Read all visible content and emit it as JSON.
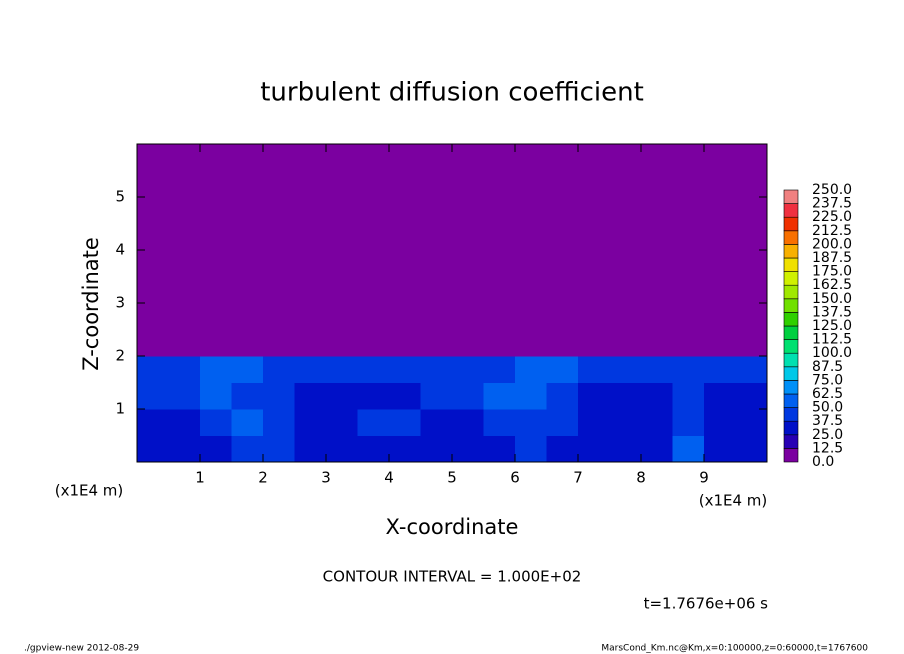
{
  "chart_data": {
    "type": "heatmap",
    "title": "turbulent diffusion coefficient",
    "x_label": "X-coordinate",
    "y_label": "Z-coordinate",
    "x_unit": "(x1E4 m)",
    "y_unit": "(x1E4 m)",
    "contour_interval": "CONTOUR INTERVAL = 1.000E+02",
    "time_label": "t=1.7676e+06 s",
    "footer_left": "./gpview-new  2012-08-29",
    "footer_right": "MarsCond_Km.nc@Km,x=0:100000,z=0:60000,t=1767600",
    "xlim": [
      0,
      10
    ],
    "ylim": [
      0,
      6
    ],
    "xticks": [
      1,
      2,
      3,
      4,
      5,
      6,
      7,
      8,
      9
    ],
    "yticks": [
      1,
      2,
      3,
      4,
      5
    ],
    "x_edges": [
      0,
      0.5,
      1,
      1.5,
      2,
      2.5,
      3,
      3.5,
      4,
      4.5,
      5,
      5.5,
      6,
      6.5,
      7,
      7.5,
      8,
      8.5,
      9,
      9.5,
      10
    ],
    "y_edges": [
      0,
      0.5,
      1,
      1.5,
      2,
      6
    ],
    "z": [
      [
        30,
        32,
        34,
        45,
        38,
        34,
        32,
        36,
        34,
        33,
        32,
        35,
        40,
        36,
        32,
        31,
        33,
        55,
        35,
        32
      ],
      [
        34,
        36,
        38,
        55,
        40,
        34,
        33,
        38,
        40,
        36,
        34,
        40,
        48,
        38,
        33,
        32,
        34,
        45,
        34,
        33
      ],
      [
        38,
        42,
        60,
        48,
        38,
        36,
        35,
        34,
        36,
        40,
        44,
        50,
        55,
        42,
        36,
        34,
        35,
        40,
        36,
        35
      ],
      [
        42,
        45,
        50,
        55,
        46,
        42,
        40,
        44,
        42,
        40,
        44,
        46,
        50,
        55,
        44,
        40,
        42,
        40,
        38,
        40
      ],
      [
        0,
        0,
        0,
        0,
        0,
        0,
        0,
        0,
        0,
        0,
        0,
        0,
        0,
        0,
        0,
        0,
        0,
        0,
        0,
        0
      ]
    ],
    "levels": [
      {
        "value": 0,
        "label": "0.0"
      },
      {
        "value": 12.5,
        "label": "12.5"
      },
      {
        "value": 25,
        "label": "25.0"
      },
      {
        "value": 37.5,
        "label": "37.5"
      },
      {
        "value": 50,
        "label": "50.0"
      },
      {
        "value": 62.5,
        "label": "62.5"
      },
      {
        "value": 75,
        "label": "75.0"
      },
      {
        "value": 87.5,
        "label": "87.5"
      },
      {
        "value": 100,
        "label": "100.0"
      },
      {
        "value": 112.5,
        "label": "112.5"
      },
      {
        "value": 125,
        "label": "125.0"
      },
      {
        "value": 137.5,
        "label": "137.5"
      },
      {
        "value": 150,
        "label": "150.0"
      },
      {
        "value": 162.5,
        "label": "162.5"
      },
      {
        "value": 175,
        "label": "175.0"
      },
      {
        "value": 187.5,
        "label": "187.5"
      },
      {
        "value": 200,
        "label": "200.0"
      },
      {
        "value": 212.5,
        "label": "212.5"
      },
      {
        "value": 225,
        "label": "225.0"
      },
      {
        "value": 237.5,
        "label": "237.5"
      },
      {
        "value": 250,
        "label": "250.0"
      }
    ],
    "level_colors": [
      "#7b00a0",
      "#2800b4",
      "#0010c8",
      "#0038e0",
      "#0060f0",
      "#0090f8",
      "#00c8e8",
      "#00e0b0",
      "#00e070",
      "#00d040",
      "#30d000",
      "#70e000",
      "#a0e800",
      "#d0f000",
      "#f0e000",
      "#f8b000",
      "#f87000",
      "#f03000",
      "#f03040",
      "#f08080"
    ]
  }
}
